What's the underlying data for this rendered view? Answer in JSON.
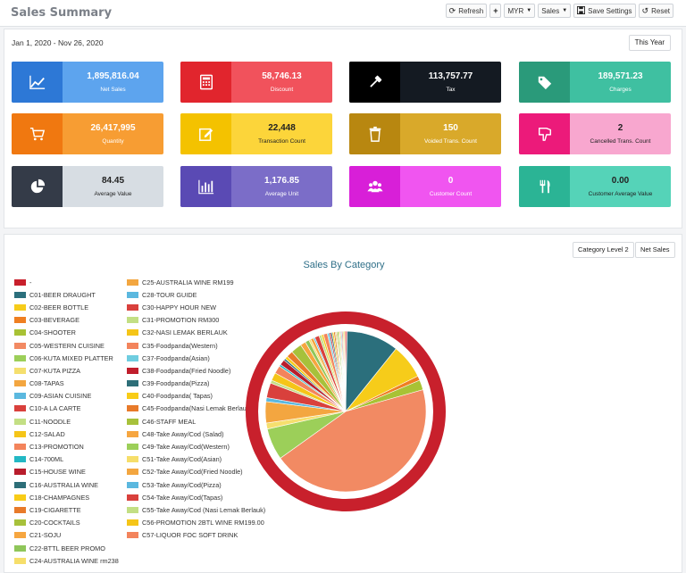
{
  "header": {
    "title": "Sales Summary",
    "refresh": "Refresh",
    "currency": "MYR",
    "sales": "Sales",
    "save_settings": "Save Settings",
    "reset": "Reset"
  },
  "filter": {
    "date_range": "Jan 1, 2020 - Nov 26, 2020",
    "preset": "This Year"
  },
  "cards": [
    {
      "value": "1,895,816.04",
      "label": "Net Sales",
      "icon": "line-chart-icon",
      "icon_bg": "#2d78d6",
      "bg": "#5da4ee",
      "fg": "#ffffff"
    },
    {
      "value": "58,746.13",
      "label": "Discount",
      "icon": "calculator-icon",
      "icon_bg": "#e1252d",
      "bg": "#f1525c",
      "fg": "#ffffff"
    },
    {
      "value": "113,757.77",
      "label": "Tax",
      "icon": "gavel-icon",
      "icon_bg": "#000000",
      "bg": "#141a22",
      "fg": "#ffffff"
    },
    {
      "value": "189,571.23",
      "label": "Charges",
      "icon": "tags-icon",
      "icon_bg": "#2a9a7a",
      "bg": "#3fc0a1",
      "fg": "#ffffff"
    },
    {
      "value": "26,417,995",
      "label": "Quantity",
      "icon": "cart-icon",
      "icon_bg": "#f07810",
      "bg": "#f79d33",
      "fg": "#ffffff"
    },
    {
      "value": "22,448",
      "label": "Transaction Count",
      "icon": "edit-icon",
      "icon_bg": "#f4c200",
      "bg": "#fcd53a",
      "fg": "#222222"
    },
    {
      "value": "150",
      "label": "Voided Trans. Count",
      "icon": "trash-icon",
      "icon_bg": "#b88710",
      "bg": "#d9a92a",
      "fg": "#ffffff"
    },
    {
      "value": "2",
      "label": "Cancelled Trans. Count",
      "icon": "thumbs-down-icon",
      "icon_bg": "#ec1a7a",
      "bg": "#f8a7cf",
      "fg": "#222222"
    },
    {
      "value": "84.45",
      "label": "Average Value",
      "icon": "pie-chart-icon",
      "icon_bg": "#343b48",
      "bg": "#d7dde3",
      "fg": "#222222"
    },
    {
      "value": "1,176.85",
      "label": "Average Unit",
      "icon": "bar-chart-icon",
      "icon_bg": "#5a4ab4",
      "bg": "#7b6dc8",
      "fg": "#ffffff"
    },
    {
      "value": "0",
      "label": "Customer Count",
      "icon": "users-icon",
      "icon_bg": "#d81fd8",
      "bg": "#f055f0",
      "fg": "#ffffff"
    },
    {
      "value": "0.00",
      "label": "Customer Average Value",
      "icon": "cutlery-icon",
      "icon_bg": "#2bb495",
      "bg": "#55d3b8",
      "fg": "#222222"
    }
  ],
  "chart_controls": {
    "level": "Category Level 2",
    "metric": "Net Sales"
  },
  "chart_data": {
    "type": "pie",
    "title": "Sales By Category",
    "categories": [
      "-",
      "C01-BEER DRAUGHT",
      "C02-BEER BOTTLE",
      "C03-BEVERAGE",
      "C04-SHOOTER",
      "C05-WESTERN CUISINE",
      "C06-KUTA MIXED PLATTER",
      "C07-KUTA PIZZA",
      "C08-TAPAS",
      "C09-ASIAN CUISINE",
      "C10-A LA CARTE",
      "C11-NOODLE",
      "C12-SALAD",
      "C13-PROMOTION",
      "C14-700ML",
      "C15-HOUSE WINE",
      "C16-AUSTRALIA WINE",
      "C18-CHAMPAGNES",
      "C19-CIGARETTE",
      "C20-COCKTAILS",
      "C21-SOJU",
      "C22-BTTL BEER PROMO",
      "C24-AUSTRALIA WINE rm238",
      "C25-AUSTRALIA WINE RM199",
      "C28-TOUR GUIDE",
      "C30-HAPPY HOUR NEW",
      "C31-PROMOTION RM300",
      "C32-NASI LEMAK BERLAUK",
      "C35-Foodpanda(Western)",
      "C37-Foodpanda(Asian)",
      "C38-Foodpanda(Fried Noodle)",
      "C39-Foodpanda(Pizza)",
      "C40-Foodpanda( Tapas)",
      "C45-Foodpanda(Nasi Lemak Berlauk)",
      "C46-STAFF MEAL",
      "C48-Take Away/Cod (Salad)",
      "C49-Take Away/Cod(Western)",
      "C51-Take Away/Cod(Asian)",
      "C52-Take Away/Cod(Fried Noodle)",
      "C53-Take Away/Cod(Pizza)",
      "C54-Take Away/Cod(Tapas)",
      "C55-Take Away/Cod (Nasi Lemak Berlauk)",
      "C56-PROMOTION  2BTL WINE RM199.00",
      "C57-LIQUOR FOC SOFT DRINK"
    ],
    "colors": [
      "#c8202c",
      "#2b6f7c",
      "#f6cc1a",
      "#ef7f22",
      "#a8c235",
      "#f28a63",
      "#9ccf59",
      "#f5df6e",
      "#f3a640",
      "#5bb8df",
      "#d9403c",
      "#c3df84",
      "#f5c518",
      "#f3845c",
      "#23b8c4",
      "#b81d2c",
      "#2d6e78",
      "#f8cc17",
      "#e87a2a",
      "#a7c13b",
      "#f6a640",
      "#8fc65a",
      "#f6de6a",
      "#f3a640",
      "#5bb8df",
      "#d9403c",
      "#c3df84",
      "#f5c518",
      "#f3845c",
      "#6fcde0",
      "#c01e2c",
      "#2d6e78",
      "#f8cc17",
      "#e87a2a",
      "#a7c13b",
      "#f6a640",
      "#9ccf59",
      "#f6de6a",
      "#f3a640",
      "#5bb8df",
      "#d9403c",
      "#c3df84",
      "#f5c518",
      "#f3845c"
    ],
    "values": [
      0.3,
      10.5,
      7.0,
      0.9,
      2.0,
      44.6,
      6.4,
      1.2,
      4.3,
      0.8,
      3.0,
      0.6,
      1.6,
      1.6,
      0.4,
      1.1,
      0.4,
      0.6,
      1.3,
      2.2,
      1.1,
      0.8,
      0.4,
      0.6,
      0.3,
      0.9,
      0.5,
      0.4,
      0.8,
      0.4,
      0.3,
      0.3,
      0.3,
      0.3,
      0.2,
      0.2,
      0.3,
      0.2,
      0.2,
      0.2,
      0.2,
      0.2,
      0.2,
      0.2
    ],
    "legend_position": "left",
    "outer_ring_color": "#c8202c"
  }
}
